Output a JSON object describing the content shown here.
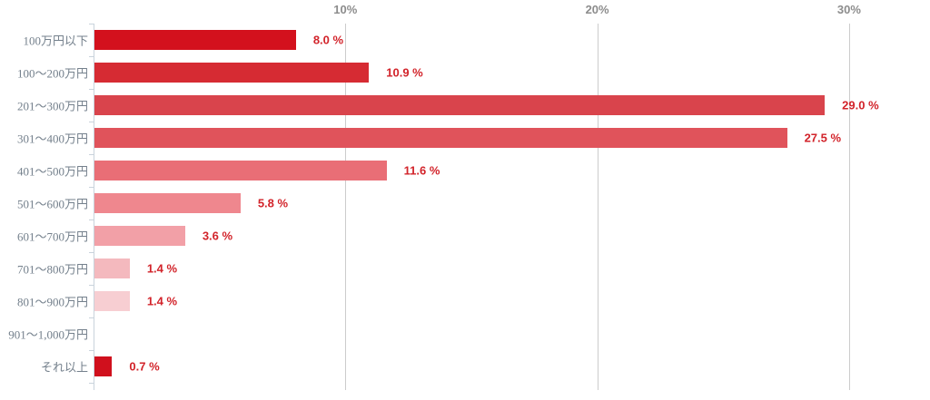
{
  "chart_data": {
    "type": "bar",
    "orientation": "horizontal",
    "title": "",
    "xlabel": "",
    "ylabel": "",
    "xlim": [
      0,
      33.2
    ],
    "grid": true,
    "legend": false,
    "categories": [
      "100万円以下",
      "100〜200万円",
      "201〜300万円",
      "301〜400万円",
      "401〜500万円",
      "501〜600万円",
      "601〜700万円",
      "701〜800万円",
      "801〜900万円",
      "901〜1,000万円",
      "それ以上"
    ],
    "values": [
      8.0,
      10.9,
      29.0,
      27.5,
      11.6,
      5.8,
      3.6,
      1.4,
      1.4,
      0,
      0.7
    ],
    "value_labels": [
      "8.0 %",
      "10.9 %",
      "29.0 %",
      "27.5 %",
      "11.6 %",
      "5.8 %",
      "3.6 %",
      "1.4 %",
      "1.4 %",
      "",
      "0.7 %"
    ],
    "bar_colors": [
      "#d3111d",
      "#d62b33",
      "#d9444c",
      "#e0535b",
      "#e96e76",
      "#ef878e",
      "#f2a0a7",
      "#f4b9be",
      "#f7ced2",
      "#f7ced2",
      "#d0101d"
    ],
    "x_ticks": [
      {
        "label": "10%",
        "value": 10
      },
      {
        "label": "20%",
        "value": 20
      },
      {
        "label": "30%",
        "value": 30
      }
    ]
  },
  "colors": {
    "value_label": "#d2232a",
    "tick_label": "#8c8c8c",
    "category_label": "#74808c",
    "axis_line": "#c9d3dc",
    "gridline": "#cccccc",
    "background": "#ffffff"
  }
}
